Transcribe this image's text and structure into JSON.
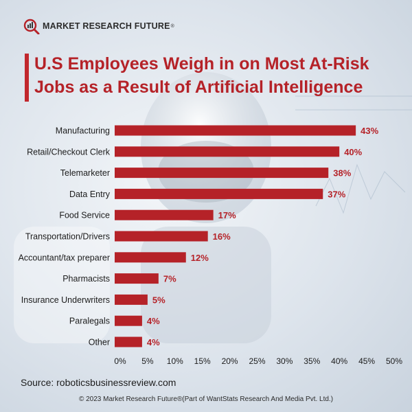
{
  "brand": {
    "name": "MARKET RESEARCH FUTURE",
    "reg_mark": "®"
  },
  "title": "U.S Employees Weigh in on Most At-Risk\nJobs as a Result of Artificial Intelligence",
  "source": "Source: roboticsbusinessreview.com",
  "copyright": "© 2023 Market Research Future®(Part of WantStats Research And Media Pvt. Ltd.)",
  "colors": {
    "bar": "#b52228",
    "label": "#b52228",
    "title": "#b52228"
  },
  "chart_data": {
    "type": "bar",
    "orientation": "horizontal",
    "title": "U.S Employees Weigh in on Most At-Risk Jobs as a Result of Artificial Intelligence",
    "xlabel": "",
    "ylabel": "",
    "xlim": [
      0,
      50
    ],
    "grid": false,
    "categories": [
      "Manufacturing",
      "Retail/Checkout Clerk",
      "Telemarketer",
      "Data Entry",
      "Food Service",
      "Transportation/Drivers",
      "Accountant/tax preparer",
      "Pharmacists",
      "Insurance Underwriters",
      "Paralegals",
      "Other"
    ],
    "values": [
      43,
      40,
      38,
      37,
      17,
      16,
      12,
      7,
      5,
      4,
      4
    ],
    "value_labels": [
      "43%",
      "40%",
      "38%",
      "37%",
      "17%",
      "16%",
      "12%",
      "7%",
      "5%",
      "4%",
      "4%"
    ],
    "x_ticks": [
      "0%",
      "5%",
      "10%",
      "15%",
      "20%",
      "25%",
      "30%",
      "35%",
      "40%",
      "45%",
      "50%"
    ]
  }
}
